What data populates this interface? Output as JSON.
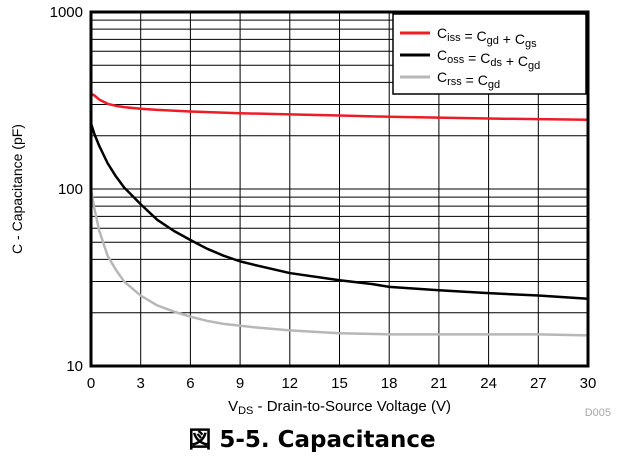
{
  "chart_data": {
    "type": "line",
    "title": "",
    "xlabel": {
      "main": "V",
      "sub": "DS",
      "rest": " - Drain-to-Source Voltage (V)"
    },
    "ylabel": "C - Capacitance (pF)",
    "x_scale": "linear",
    "y_scale": "log",
    "xlim": [
      0,
      30
    ],
    "ylim": [
      10,
      1000
    ],
    "x_ticks": [
      0,
      3,
      6,
      9,
      12,
      15,
      18,
      21,
      24,
      27,
      30
    ],
    "x_tick_labels": [
      "0",
      "3",
      "6",
      "9",
      "12",
      "15",
      "18",
      "21",
      "24",
      "27",
      "30"
    ],
    "y_ticks": [
      10,
      100,
      1000
    ],
    "y_tick_labels": [
      "10",
      "100",
      "1000"
    ],
    "grid": true,
    "legend_position": "top-right",
    "series": [
      {
        "name": "Ciss = Cgd + Cgs",
        "legend": [
          {
            "t": "C",
            "s": "iss"
          },
          {
            "t": " = C",
            "s": "gd"
          },
          {
            "t": " + C",
            "s": "gs"
          }
        ],
        "color": "#ee1c25",
        "x": [
          0,
          0.2,
          0.5,
          1,
          1.5,
          2,
          3,
          4,
          6,
          9,
          12,
          15,
          18,
          21,
          24,
          27,
          30
        ],
        "y": [
          345,
          338,
          320,
          303,
          295,
          290,
          284,
          280,
          274,
          268,
          264,
          260,
          256,
          253,
          250,
          248,
          246
        ]
      },
      {
        "name": "Coss = Cds + Cgd",
        "legend": [
          {
            "t": "C",
            "s": "oss"
          },
          {
            "t": " = C",
            "s": "ds"
          },
          {
            "t": " + C",
            "s": "gd"
          }
        ],
        "color": "#000000",
        "x": [
          0,
          0.2,
          0.5,
          1,
          1.5,
          2,
          3,
          4,
          5,
          6,
          7,
          8,
          9,
          10,
          12,
          15,
          17,
          18,
          21,
          24,
          27,
          30
        ],
        "y": [
          235,
          205,
          175,
          140,
          118,
          102,
          82,
          67,
          58,
          51.5,
          46,
          42,
          39,
          37,
          33.5,
          30.5,
          29,
          28,
          26.8,
          25.8,
          25,
          24
        ]
      },
      {
        "name": "Crss = Cgd",
        "legend": [
          {
            "t": "C",
            "s": "rss"
          },
          {
            "t": " = C",
            "s": "gd"
          }
        ],
        "color": "#b7b7b7",
        "x": [
          0,
          0.2,
          0.5,
          1,
          1.5,
          2,
          3,
          4,
          5,
          6,
          7,
          8,
          10,
          12,
          15,
          18,
          21,
          24,
          27,
          30
        ],
        "y": [
          100,
          78,
          58,
          42,
          35,
          30,
          25,
          22,
          20.3,
          19,
          18,
          17.3,
          16.5,
          15.9,
          15.3,
          15.1,
          15.1,
          15.1,
          15.1,
          14.9
        ]
      }
    ]
  },
  "figure_id": "D005",
  "caption": "図 5-5. Capacitance"
}
